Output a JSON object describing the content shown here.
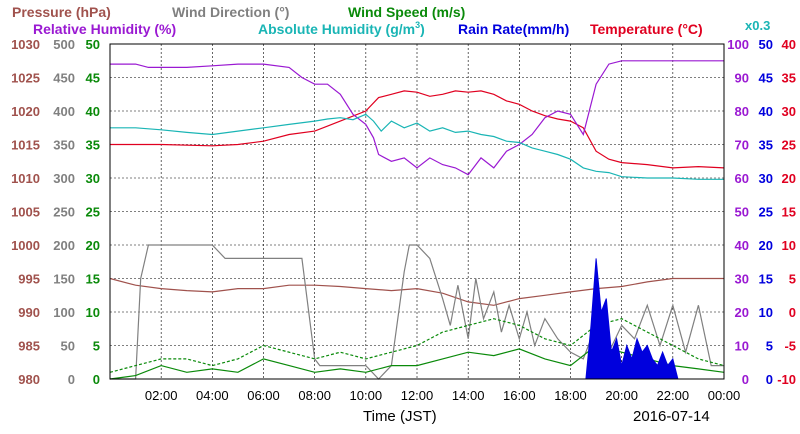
{
  "chart_data": {
    "type": "line",
    "legend": {
      "row1": [
        {
          "key": "pressure",
          "label": "Pressure (hPa)",
          "color": "#a0524d"
        },
        {
          "key": "wind_dir",
          "label": "Wind Direction (°)",
          "color": "#808080"
        },
        {
          "key": "wind_speed",
          "label": "Wind Speed (m/s)",
          "color": "#0a8a0a"
        }
      ],
      "row2": [
        {
          "key": "rh",
          "label": "Relative Humidity (%)",
          "color": "#9a19d2"
        },
        {
          "key": "ah",
          "label": "Absolute Humidity (g/m",
          "sup": "3",
          "close": ")",
          "color": "#1ab5b5"
        },
        {
          "key": "rain",
          "label": "Rain Rate(mm/h)",
          "color": "#0000dd"
        },
        {
          "key": "temp",
          "label": "Temperature (°C)",
          "color": "#e00020"
        }
      ],
      "ah_scale_label": "x0.3"
    },
    "x_ticks": [
      "02:00",
      "04:00",
      "06:00",
      "08:00",
      "10:00",
      "12:00",
      "14:00",
      "16:00",
      "18:00",
      "20:00",
      "22:00",
      "00:00"
    ],
    "x_range_hours": [
      0,
      24
    ],
    "xlabel": "Time (JST)",
    "date": "2016-07-14",
    "left_axes": {
      "pressure": {
        "ticks": [
          "1030",
          "1025",
          "1020",
          "1015",
          "1010",
          "1005",
          "1000",
          "995",
          "990",
          "985",
          "980"
        ],
        "range": [
          980,
          1030
        ]
      },
      "wind_dir": {
        "ticks": [
          "500",
          "450",
          "400",
          "350",
          "300",
          "250",
          "200",
          "150",
          "100",
          "50",
          "0"
        ],
        "range": [
          0,
          500
        ]
      },
      "wind_speed": {
        "ticks": [
          "50",
          "45",
          "40",
          "35",
          "30",
          "25",
          "20",
          "15",
          "10",
          "5",
          "0"
        ],
        "range": [
          0,
          50
        ]
      }
    },
    "right_axes": {
      "rh": {
        "ticks": [
          "100",
          "90",
          "80",
          "70",
          "60",
          "50",
          "40",
          "30",
          "20",
          "10",
          "0"
        ],
        "range": [
          0,
          100
        ]
      },
      "rain": {
        "ticks": [
          "50",
          "45",
          "40",
          "35",
          "30",
          "25",
          "20",
          "15",
          "10",
          "5",
          "0"
        ],
        "range": [
          0,
          50
        ]
      },
      "temp": {
        "ticks": [
          "40",
          "35",
          "30",
          "25",
          "20",
          "15",
          "10",
          "5",
          "0",
          "-5",
          "-10"
        ],
        "range": [
          -10,
          40
        ]
      }
    },
    "series": [
      {
        "name": "Temperature (°C)",
        "key": "temp",
        "axis": "temp",
        "color": "#e00020",
        "x": [
          0,
          2,
          4,
          5,
          6,
          7,
          8,
          9,
          10,
          10.5,
          11,
          11.5,
          12,
          12.5,
          13,
          13.5,
          14,
          14.5,
          15,
          15.5,
          16,
          16.5,
          17,
          17.5,
          18,
          18.5,
          19,
          19.5,
          20,
          21,
          22,
          23,
          24
        ],
        "y": [
          25,
          25,
          24.8,
          25,
          25.5,
          26.5,
          27,
          28.5,
          30,
          32,
          32.5,
          33,
          32.8,
          32.2,
          32.5,
          33,
          32.8,
          33,
          32.5,
          31.5,
          31,
          30,
          29.3,
          28.8,
          28.5,
          27.5,
          24,
          22.8,
          22.3,
          22,
          21.5,
          21.7,
          21.5
        ]
      },
      {
        "name": "Relative Humidity (%)",
        "key": "rh",
        "axis": "rh",
        "color": "#9a19d2",
        "x": [
          0,
          1,
          1.5,
          2,
          3,
          4,
          5,
          6,
          7,
          7.5,
          8,
          8.5,
          9,
          9.5,
          10,
          10.3,
          10.5,
          11,
          11.5,
          12,
          12.5,
          13,
          13.5,
          14,
          14.5,
          15,
          15.5,
          16,
          16.5,
          17,
          17.5,
          18,
          18.5,
          19,
          19.5,
          20,
          21,
          22,
          23,
          24
        ],
        "y": [
          94,
          94,
          93,
          93,
          93,
          93.5,
          94,
          94,
          93,
          90,
          88,
          88,
          85,
          79,
          76,
          72,
          67,
          65,
          66,
          63,
          66,
          64,
          63,
          61,
          66,
          63,
          68,
          70,
          73,
          78,
          80,
          79,
          73,
          88,
          94,
          95,
          95,
          95,
          95,
          95
        ],
        "style": "solid"
      },
      {
        "name": "Absolute Humidity (g/m3)",
        "key": "ah",
        "axis": "wind_speed",
        "color": "#1ab5b5",
        "x": [
          0,
          1,
          2,
          3,
          4,
          5,
          6,
          7,
          8,
          8.5,
          9,
          9.5,
          10,
          10.3,
          10.6,
          11,
          11.5,
          12,
          12.5,
          13,
          13.5,
          14,
          14.5,
          15,
          15.5,
          16,
          16.5,
          17,
          17.5,
          18,
          18.5,
          19,
          19.5,
          20,
          21,
          22,
          23,
          24
        ],
        "y": [
          37.5,
          37.5,
          37.2,
          36.8,
          36.5,
          37,
          37.5,
          38,
          38.5,
          38.8,
          39,
          38.7,
          39.5,
          38.5,
          37,
          38.5,
          37.5,
          38.2,
          37,
          37.5,
          36.8,
          37,
          36.5,
          36.2,
          35.5,
          35.3,
          34.5,
          34,
          33.5,
          32.8,
          31.5,
          31,
          30.8,
          30.2,
          30,
          30,
          29.8,
          29.8
        ]
      },
      {
        "name": "Pressure (hPa)",
        "key": "pressure",
        "axis": "pressure",
        "color": "#a0524d",
        "x": [
          0,
          1,
          2,
          3,
          4,
          5,
          6,
          7,
          8,
          9,
          10,
          11,
          12,
          13,
          14,
          15,
          16,
          17,
          18,
          19,
          20,
          21,
          22,
          23,
          24
        ],
        "y": [
          995,
          994,
          993.5,
          993.2,
          993,
          993.5,
          993.5,
          994,
          994,
          993.8,
          993.5,
          993.2,
          993.5,
          992.8,
          991.5,
          991,
          992,
          992.5,
          993,
          993.5,
          993.8,
          994.5,
          995,
          995,
          995
        ]
      },
      {
        "name": "Wind Direction (°)",
        "key": "wind_dir",
        "axis": "wind_dir",
        "color": "#808080",
        "x": [
          0,
          1,
          1.2,
          1.5,
          2,
          2.5,
          3,
          4,
          4.5,
          5,
          6,
          6.5,
          7,
          7.5,
          8,
          8.2,
          8.5,
          9,
          9.5,
          10,
          10.5,
          11,
          11.5,
          11.7,
          12,
          12.5,
          13,
          13.3,
          13.6,
          14,
          14.3,
          14.6,
          15,
          15.3,
          15.6,
          16,
          16.3,
          16.6,
          17,
          17.5,
          18,
          18.5,
          19,
          19.5,
          20,
          20.5,
          21,
          21.5,
          22,
          22.5,
          23,
          23.5,
          24
        ],
        "y": [
          0,
          0,
          150,
          200,
          200,
          200,
          200,
          200,
          180,
          180,
          180,
          180,
          180,
          180,
          30,
          20,
          20,
          20,
          20,
          20,
          0,
          20,
          160,
          200,
          200,
          180,
          120,
          80,
          140,
          60,
          150,
          90,
          130,
          70,
          110,
          60,
          100,
          50,
          90,
          60,
          40,
          30,
          80,
          40,
          80,
          60,
          110,
          50,
          110,
          40,
          110,
          20,
          20
        ]
      },
      {
        "name": "Wind Speed (m/s)",
        "key": "wind_speed",
        "axis": "wind_speed",
        "color": "#0a8a0a",
        "x": [
          0,
          1,
          2,
          3,
          4,
          5,
          6,
          7,
          8,
          9,
          10,
          11,
          12,
          13,
          14,
          15,
          16,
          17,
          18,
          19,
          20,
          21,
          22,
          23,
          24
        ],
        "y": [
          0,
          0.5,
          2,
          1,
          1.5,
          1,
          3,
          2,
          1,
          1.5,
          1,
          2,
          2,
          3,
          4,
          3.5,
          4.5,
          3,
          2,
          5,
          4,
          3,
          2,
          1.5,
          1
        ]
      },
      {
        "name": "Wind Speed gust (m/s)",
        "key": "wind_speed",
        "axis": "wind_speed",
        "color": "#0a8a0a",
        "style": "dashed",
        "x": [
          0,
          1,
          2,
          3,
          4,
          5,
          6,
          7,
          8,
          9,
          10,
          11,
          12,
          13,
          14,
          15,
          16,
          17,
          18,
          19,
          20,
          21,
          22,
          23,
          24
        ],
        "y": [
          1,
          2,
          3,
          3,
          2,
          3,
          5,
          4,
          3,
          4,
          3,
          4,
          5,
          7,
          8,
          9,
          8,
          6,
          5,
          8,
          9,
          7,
          5,
          3,
          2
        ]
      },
      {
        "name": "Rain Rate(mm/h)",
        "key": "rain",
        "axis": "rain",
        "color": "#0000dd",
        "style": "area",
        "x": [
          18.6,
          18.8,
          19,
          19.2,
          19.4,
          19.6,
          19.8,
          20,
          20.2,
          20.4,
          20.6,
          20.8,
          21,
          21.2,
          21.4,
          21.6,
          21.8,
          22,
          22.2
        ],
        "y": [
          0,
          8,
          18,
          10,
          12,
          4,
          6,
          2,
          5,
          3,
          6,
          4,
          5,
          3,
          2,
          4,
          2,
          3,
          0
        ]
      }
    ]
  }
}
